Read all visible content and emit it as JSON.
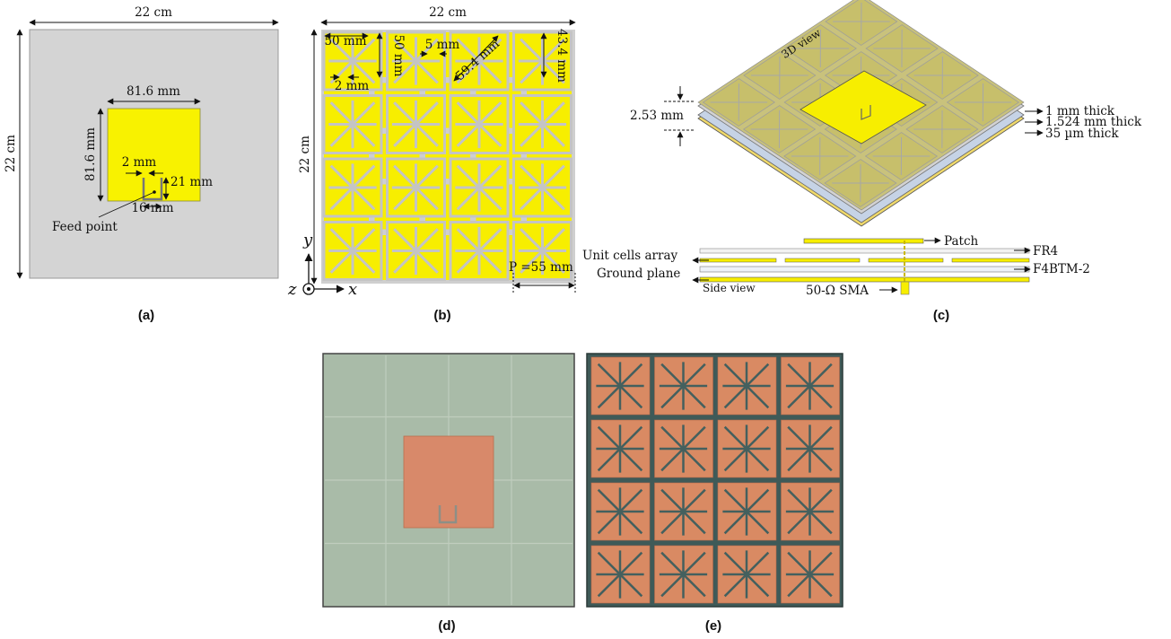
{
  "panel_a": {
    "caption": "(a)",
    "width_label": "22 cm",
    "height_label": "22 cm",
    "patch_width_label": "81.6 mm",
    "patch_height_label": "81.6 mm",
    "slot_width_label": "2 mm",
    "slot_length_label": "21 mm",
    "slot_span_label": "16 mm",
    "feed_label": "Feed point"
  },
  "panel_b": {
    "caption": "(b)",
    "width_label": "22 cm",
    "height_label": "22 cm",
    "cell_label": "50 mm",
    "cell_v_label": "50 mm",
    "gap_label": "5 mm",
    "slot_label": "2 mm",
    "diag_label": "59.4 mm",
    "arm_label": "43.4 mm",
    "period_label": "P =55 mm",
    "axis_y": "y",
    "axis_x": "x",
    "axis_z": "z"
  },
  "panel_c": {
    "caption": "(c)",
    "view3d_label": "3D view",
    "total_thickness": "2.53 mm",
    "layer1_thickness": "1 mm thick",
    "layer2_thickness": "1.524 mm thick",
    "layer3_thickness": "35 µm thick",
    "patch_label": "Patch",
    "fr4_label": "FR4",
    "unit_cells_label": "Unit cells array",
    "f4btm_label": "F4BTM-2",
    "ground_label": "Ground plane",
    "side_view_label": "Side view",
    "sma_label": "50-Ω SMA"
  },
  "panel_d": {
    "caption": "(d)"
  },
  "panel_e": {
    "caption": "(e)"
  },
  "colors": {
    "substrate": "#d4d4d4",
    "copper_yellow": "#f8f000",
    "photo_green": "#a9bba8",
    "photo_copper": "#d98a63",
    "photo_dark": "#3f5a58"
  }
}
